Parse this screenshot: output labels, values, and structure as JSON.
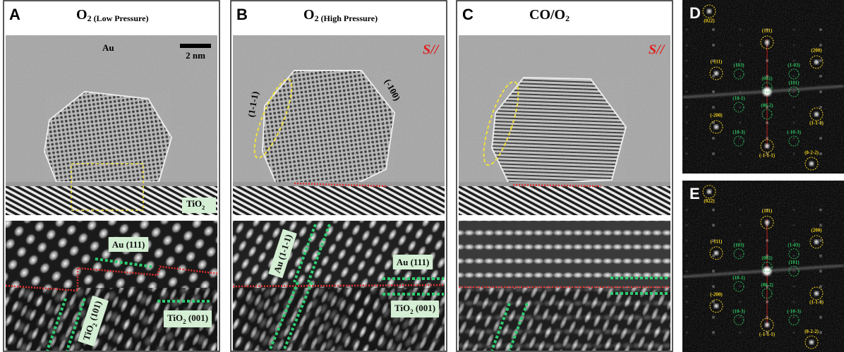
{
  "panel_a": {
    "letter": "A",
    "title": {
      "text": "O",
      "sub": "2 (Low Pressure)"
    },
    "particle": "Au",
    "scale_bar": "2 nm",
    "substrate": {
      "text": "TiO",
      "sub": "2"
    },
    "zoom_labels": [
      {
        "text": "Au (111)"
      },
      {
        "text": "TiO",
        "sub": "2",
        "tail": " (101)"
      },
      {
        "text": "TiO",
        "sub": "2",
        "tail": " (001)"
      }
    ]
  },
  "panel_b": {
    "letter": "B",
    "title": {
      "text": "O",
      "sub": "2 (High Pressure)"
    },
    "symbol": "S//",
    "facets": [
      "(1-1-1)",
      "(-100)"
    ],
    "zoom_labels": [
      {
        "text": "Au (1-1-1)"
      },
      {
        "text": "Au (111)"
      },
      {
        "text": "TiO",
        "sub": "2",
        "tail": " (001)"
      }
    ]
  },
  "panel_c": {
    "letter": "C",
    "title": {
      "text": "CO/O",
      "sub": "2"
    },
    "symbol": "S//"
  },
  "panel_d": {
    "letter": "D",
    "yellow_labels": [
      "(022)",
      "(111)",
      "(200)",
      "(-111)",
      "(1-1-1)",
      "(-200)",
      "(-1-1-1)",
      "(0-2-2)"
    ],
    "green_labels": [
      "(103)",
      "(1-03)",
      "(002)",
      "(101)",
      "(10-1)",
      "(00-2)",
      "(10-3)",
      "(-10-3)"
    ]
  },
  "panel_e": {
    "letter": "E",
    "yellow_labels": [
      "(022)",
      "(111)",
      "(200)",
      "(-111)",
      "(1-1-1)",
      "(-200)",
      "(-1-1-1)",
      "(0-2-2)"
    ],
    "green_labels": [
      "(103)",
      "(1-03)",
      "(002)",
      "(101)",
      "(10-1)",
      "(00-2)",
      "(10-3)",
      "(-10-3)"
    ]
  }
}
